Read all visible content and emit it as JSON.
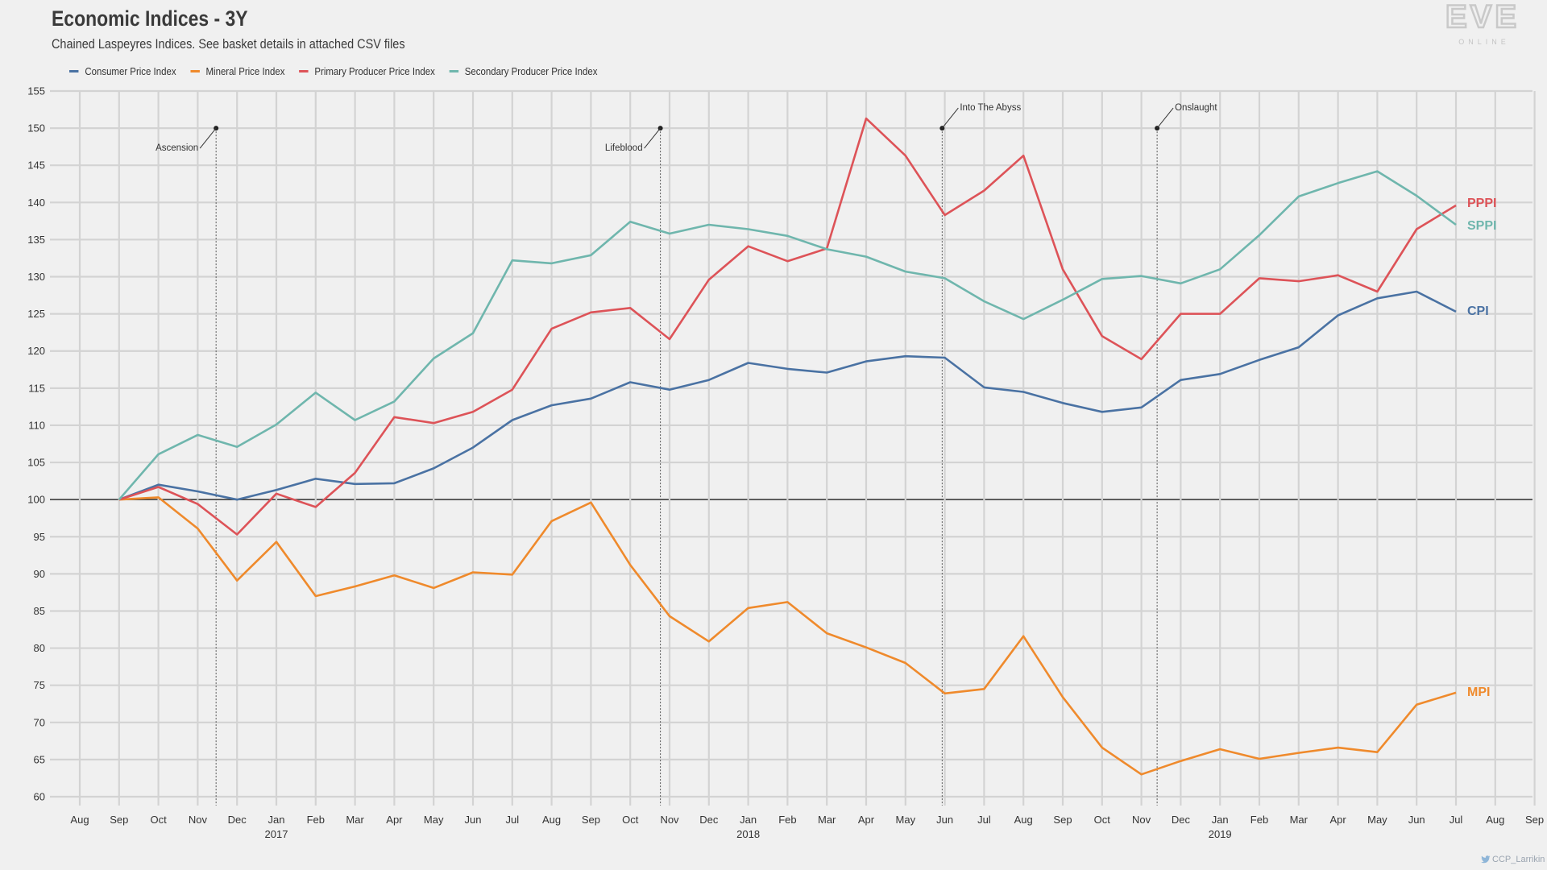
{
  "header": {
    "title": "Economic Indices - 3Y",
    "subtitle": "Chained Laspeyres Indices. See basket details in attached CSV files"
  },
  "logo": {
    "main": "EVE",
    "sub": "ONLINE"
  },
  "credit": {
    "text": "CCP_Larrikin",
    "icon": "twitter-bird-icon"
  },
  "chart_data": {
    "type": "line",
    "title": "Economic Indices - 3Y",
    "subtitle": "Chained Laspeyres Indices. See basket details in attached CSV files",
    "xlabel": "",
    "ylabel": "",
    "ylim": [
      60,
      155
    ],
    "yticks": [
      60,
      65,
      70,
      75,
      80,
      85,
      90,
      95,
      100,
      105,
      110,
      115,
      120,
      125,
      130,
      135,
      140,
      145,
      150,
      155
    ],
    "baseline": 100,
    "grid": true,
    "legend_position": "top-left",
    "x_ticks": [
      {
        "label": "Aug",
        "year": ""
      },
      {
        "label": "Sep",
        "year": ""
      },
      {
        "label": "Oct",
        "year": ""
      },
      {
        "label": "Nov",
        "year": ""
      },
      {
        "label": "Dec",
        "year": ""
      },
      {
        "label": "Jan",
        "year": "2017"
      },
      {
        "label": "Feb",
        "year": ""
      },
      {
        "label": "Mar",
        "year": ""
      },
      {
        "label": "Apr",
        "year": ""
      },
      {
        "label": "May",
        "year": ""
      },
      {
        "label": "Jun",
        "year": ""
      },
      {
        "label": "Jul",
        "year": ""
      },
      {
        "label": "Aug",
        "year": ""
      },
      {
        "label": "Sep",
        "year": ""
      },
      {
        "label": "Oct",
        "year": ""
      },
      {
        "label": "Nov",
        "year": ""
      },
      {
        "label": "Dec",
        "year": ""
      },
      {
        "label": "Jan",
        "year": "2018"
      },
      {
        "label": "Feb",
        "year": ""
      },
      {
        "label": "Mar",
        "year": ""
      },
      {
        "label": "Apr",
        "year": ""
      },
      {
        "label": "May",
        "year": ""
      },
      {
        "label": "Jun",
        "year": ""
      },
      {
        "label": "Jul",
        "year": ""
      },
      {
        "label": "Aug",
        "year": ""
      },
      {
        "label": "Sep",
        "year": ""
      },
      {
        "label": "Oct",
        "year": ""
      },
      {
        "label": "Nov",
        "year": ""
      },
      {
        "label": "Dec",
        "year": ""
      },
      {
        "label": "Jan",
        "year": "2019"
      },
      {
        "label": "Feb",
        "year": ""
      },
      {
        "label": "Mar",
        "year": ""
      },
      {
        "label": "Apr",
        "year": ""
      },
      {
        "label": "May",
        "year": ""
      },
      {
        "label": "Jun",
        "year": ""
      },
      {
        "label": "Jul",
        "year": ""
      },
      {
        "label": "Aug",
        "year": ""
      },
      {
        "label": "Sep",
        "year": ""
      }
    ],
    "x": [
      "2016-09",
      "2016-10",
      "2016-11",
      "2016-12",
      "2017-01",
      "2017-02",
      "2017-03",
      "2017-04",
      "2017-05",
      "2017-06",
      "2017-07",
      "2017-08",
      "2017-09",
      "2017-10",
      "2017-11",
      "2017-12",
      "2018-01",
      "2018-02",
      "2018-03",
      "2018-04",
      "2018-05",
      "2018-06",
      "2018-07",
      "2018-08",
      "2018-09",
      "2018-10",
      "2018-11",
      "2018-12",
      "2019-01",
      "2019-02",
      "2019-03",
      "2019-04",
      "2019-05",
      "2019-06",
      "2019-07"
    ],
    "series": [
      {
        "name": "Consumer Price Index",
        "short": "CPI",
        "color": "#4a72a3",
        "values": [
          100,
          102,
          101.1,
          100,
          101.3,
          102.8,
          102.1,
          102.2,
          104.2,
          107,
          110.7,
          112.7,
          113.6,
          115.8,
          114.8,
          116.1,
          118.4,
          117.6,
          117.1,
          118.6,
          119.3,
          119.1,
          115.1,
          114.5,
          113,
          111.8,
          112.4,
          116.1,
          116.9,
          118.8,
          120.5,
          124.8,
          127.1,
          128,
          125.3
        ]
      },
      {
        "name": "Mineral Price Index",
        "short": "MPI",
        "color": "#ef8a2c",
        "values": [
          100,
          100.3,
          96.1,
          89.1,
          94.3,
          87,
          88.3,
          89.8,
          88.1,
          90.2,
          89.9,
          97.1,
          99.6,
          91.2,
          84.3,
          80.9,
          85.4,
          86.2,
          82,
          80.1,
          78,
          73.9,
          74.5,
          81.6,
          73.4,
          66.6,
          63,
          64.8,
          66.4,
          65.1,
          65.9,
          66.6,
          66,
          72.4,
          74
        ]
      },
      {
        "name": "Primary Producer Price Index",
        "short": "PPPI",
        "color": "#dd5358",
        "values": [
          100,
          101.7,
          99.4,
          95.3,
          100.8,
          99,
          103.6,
          111.1,
          110.3,
          111.8,
          114.8,
          123,
          125.2,
          125.8,
          121.6,
          129.6,
          134.1,
          132.1,
          133.8,
          151.3,
          146.3,
          138.3,
          141.6,
          146.3,
          131,
          122,
          118.9,
          125,
          125,
          129.8,
          129.4,
          130.2,
          128,
          136.4,
          139.6
        ]
      },
      {
        "name": "Secondary Producer Price Index",
        "short": "SPPI",
        "color": "#6fb6ad",
        "values": [
          100,
          106.1,
          108.7,
          107.1,
          110.1,
          114.4,
          110.7,
          113.2,
          119,
          122.4,
          132.2,
          131.8,
          132.9,
          137.4,
          135.8,
          137,
          136.4,
          135.5,
          133.7,
          132.7,
          130.7,
          129.8,
          126.7,
          124.3,
          126.9,
          129.7,
          130.1,
          129.1,
          131,
          135.6,
          140.8,
          142.6,
          144.2,
          140.9,
          137
        ]
      }
    ],
    "events": [
      {
        "label": "Ascension",
        "date": "2016-11-15",
        "label_side": "left"
      },
      {
        "label": "Lifeblood",
        "date": "2017-10-24",
        "label_side": "left"
      },
      {
        "label": "Into The Abyss",
        "date": "2018-05-29",
        "label_side": "right"
      },
      {
        "label": "Onslaught",
        "date": "2018-11-13",
        "label_side": "right"
      }
    ]
  }
}
